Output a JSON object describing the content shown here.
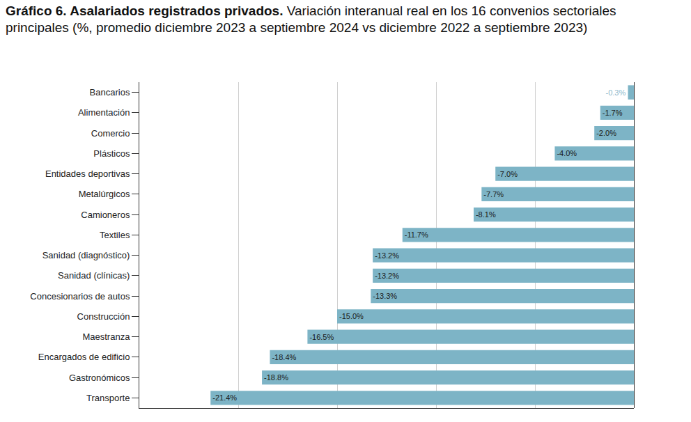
{
  "chart_data": {
    "type": "bar",
    "orientation": "horizontal",
    "title": "Gráfico 6. Asalariados registrados privados.",
    "subtitle": "Variación interanual real en los 16 convenios sectoriales principales (%, promedio diciembre 2023 a septiembre 2024 vs diciembre 2022 a septiembre 2023)",
    "categories": [
      "Bancarios",
      "Alimentación",
      "Comercio",
      "Plásticos",
      "Entidades deportivas",
      "Metalúrgicos",
      "Camioneros",
      "Textiles",
      "Sanidad (diagnóstico)",
      "Sanidad (clínicas)",
      "Concesionarios de autos",
      "Construcción",
      "Maestranza",
      "Encargados de edificio",
      "Gastronómicos",
      "Transporte"
    ],
    "values": [
      -0.3,
      -1.7,
      -2.0,
      -4.0,
      -7.0,
      -7.7,
      -8.1,
      -11.7,
      -13.2,
      -13.2,
      -13.3,
      -15.0,
      -16.5,
      -18.4,
      -18.8,
      -21.4
    ],
    "value_labels": [
      "-0.3%",
      "-1.7%",
      "-2.0%",
      "-4.0%",
      "-7.0%",
      "-7.7%",
      "-8.1%",
      "-11.7%",
      "-13.2%",
      "-13.2%",
      "-13.3%",
      "-15.0%",
      "-16.5%",
      "-18.4%",
      "-18.8%",
      "-21.4%"
    ],
    "color": "#7db4c6",
    "xlim": [
      -25,
      0
    ],
    "xticks": [
      -20,
      -15,
      -10,
      -5,
      0
    ],
    "grid": true,
    "data_labels": true,
    "tick_labels": "y"
  }
}
